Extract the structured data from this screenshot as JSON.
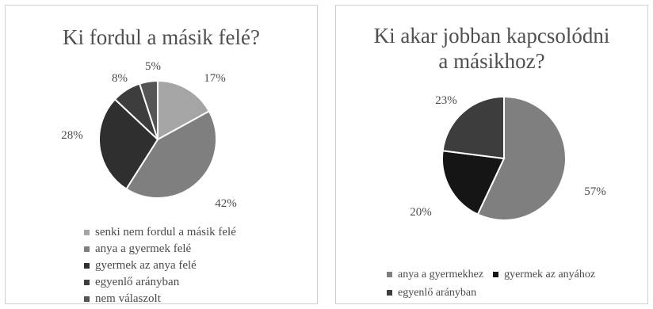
{
  "chart_data": [
    {
      "type": "pie",
      "title": "Ki fordul a másik felé?",
      "categories": [
        "senki nem fordul a másik felé",
        "anya a gyermek felé",
        "gyermek az anya felé",
        "egyenlő arányban",
        "nem válaszolt"
      ],
      "values": [
        17,
        42,
        28,
        8,
        5
      ],
      "labels": [
        "17%",
        "42%",
        "28%",
        "8%",
        "5%"
      ],
      "colors": [
        "#a5a5a5",
        "#7f7f7f",
        "#2f2f2f",
        "#3d3d3d",
        "#555555"
      ],
      "legend_position": "bottom"
    },
    {
      "type": "pie",
      "title": "Ki akar jobban kapcsolódni\na másikhoz?",
      "categories": [
        "anya a gyermekhez",
        "gyermek az anyához",
        "egyenlő arányban"
      ],
      "values": [
        57,
        20,
        23
      ],
      "labels": [
        "57%",
        "20%",
        "23%"
      ],
      "colors": [
        "#7f7f7f",
        "#151515",
        "#3d3d3d"
      ],
      "legend_position": "bottom"
    }
  ]
}
